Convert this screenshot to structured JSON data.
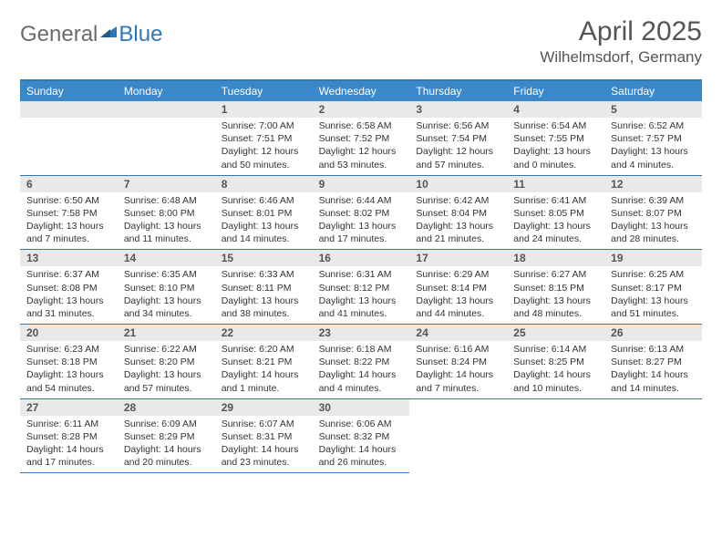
{
  "logo": {
    "part1": "General",
    "part2": "Blue"
  },
  "title": {
    "month": "April 2025",
    "location": "Wilhelmsdorf, Germany"
  },
  "colors": {
    "header_bar": "#3a87c9",
    "rule": "#2e77b8",
    "daynum_bg": "#e9e9e9",
    "text": "#333333",
    "title_text": "#555555"
  },
  "weekdays": [
    "Sunday",
    "Monday",
    "Tuesday",
    "Wednesday",
    "Thursday",
    "Friday",
    "Saturday"
  ],
  "weeks": [
    [
      {
        "n": "",
        "sr": "",
        "ss": "",
        "dl": ""
      },
      {
        "n": "",
        "sr": "",
        "ss": "",
        "dl": ""
      },
      {
        "n": "1",
        "sr": "Sunrise: 7:00 AM",
        "ss": "Sunset: 7:51 PM",
        "dl": "Daylight: 12 hours and 50 minutes."
      },
      {
        "n": "2",
        "sr": "Sunrise: 6:58 AM",
        "ss": "Sunset: 7:52 PM",
        "dl": "Daylight: 12 hours and 53 minutes."
      },
      {
        "n": "3",
        "sr": "Sunrise: 6:56 AM",
        "ss": "Sunset: 7:54 PM",
        "dl": "Daylight: 12 hours and 57 minutes."
      },
      {
        "n": "4",
        "sr": "Sunrise: 6:54 AM",
        "ss": "Sunset: 7:55 PM",
        "dl": "Daylight: 13 hours and 0 minutes."
      },
      {
        "n": "5",
        "sr": "Sunrise: 6:52 AM",
        "ss": "Sunset: 7:57 PM",
        "dl": "Daylight: 13 hours and 4 minutes."
      }
    ],
    [
      {
        "n": "6",
        "sr": "Sunrise: 6:50 AM",
        "ss": "Sunset: 7:58 PM",
        "dl": "Daylight: 13 hours and 7 minutes."
      },
      {
        "n": "7",
        "sr": "Sunrise: 6:48 AM",
        "ss": "Sunset: 8:00 PM",
        "dl": "Daylight: 13 hours and 11 minutes."
      },
      {
        "n": "8",
        "sr": "Sunrise: 6:46 AM",
        "ss": "Sunset: 8:01 PM",
        "dl": "Daylight: 13 hours and 14 minutes."
      },
      {
        "n": "9",
        "sr": "Sunrise: 6:44 AM",
        "ss": "Sunset: 8:02 PM",
        "dl": "Daylight: 13 hours and 17 minutes."
      },
      {
        "n": "10",
        "sr": "Sunrise: 6:42 AM",
        "ss": "Sunset: 8:04 PM",
        "dl": "Daylight: 13 hours and 21 minutes."
      },
      {
        "n": "11",
        "sr": "Sunrise: 6:41 AM",
        "ss": "Sunset: 8:05 PM",
        "dl": "Daylight: 13 hours and 24 minutes."
      },
      {
        "n": "12",
        "sr": "Sunrise: 6:39 AM",
        "ss": "Sunset: 8:07 PM",
        "dl": "Daylight: 13 hours and 28 minutes."
      }
    ],
    [
      {
        "n": "13",
        "sr": "Sunrise: 6:37 AM",
        "ss": "Sunset: 8:08 PM",
        "dl": "Daylight: 13 hours and 31 minutes."
      },
      {
        "n": "14",
        "sr": "Sunrise: 6:35 AM",
        "ss": "Sunset: 8:10 PM",
        "dl": "Daylight: 13 hours and 34 minutes."
      },
      {
        "n": "15",
        "sr": "Sunrise: 6:33 AM",
        "ss": "Sunset: 8:11 PM",
        "dl": "Daylight: 13 hours and 38 minutes."
      },
      {
        "n": "16",
        "sr": "Sunrise: 6:31 AM",
        "ss": "Sunset: 8:12 PM",
        "dl": "Daylight: 13 hours and 41 minutes."
      },
      {
        "n": "17",
        "sr": "Sunrise: 6:29 AM",
        "ss": "Sunset: 8:14 PM",
        "dl": "Daylight: 13 hours and 44 minutes."
      },
      {
        "n": "18",
        "sr": "Sunrise: 6:27 AM",
        "ss": "Sunset: 8:15 PM",
        "dl": "Daylight: 13 hours and 48 minutes."
      },
      {
        "n": "19",
        "sr": "Sunrise: 6:25 AM",
        "ss": "Sunset: 8:17 PM",
        "dl": "Daylight: 13 hours and 51 minutes."
      }
    ],
    [
      {
        "n": "20",
        "sr": "Sunrise: 6:23 AM",
        "ss": "Sunset: 8:18 PM",
        "dl": "Daylight: 13 hours and 54 minutes."
      },
      {
        "n": "21",
        "sr": "Sunrise: 6:22 AM",
        "ss": "Sunset: 8:20 PM",
        "dl": "Daylight: 13 hours and 57 minutes."
      },
      {
        "n": "22",
        "sr": "Sunrise: 6:20 AM",
        "ss": "Sunset: 8:21 PM",
        "dl": "Daylight: 14 hours and 1 minute."
      },
      {
        "n": "23",
        "sr": "Sunrise: 6:18 AM",
        "ss": "Sunset: 8:22 PM",
        "dl": "Daylight: 14 hours and 4 minutes."
      },
      {
        "n": "24",
        "sr": "Sunrise: 6:16 AM",
        "ss": "Sunset: 8:24 PM",
        "dl": "Daylight: 14 hours and 7 minutes."
      },
      {
        "n": "25",
        "sr": "Sunrise: 6:14 AM",
        "ss": "Sunset: 8:25 PM",
        "dl": "Daylight: 14 hours and 10 minutes."
      },
      {
        "n": "26",
        "sr": "Sunrise: 6:13 AM",
        "ss": "Sunset: 8:27 PM",
        "dl": "Daylight: 14 hours and 14 minutes."
      }
    ],
    [
      {
        "n": "27",
        "sr": "Sunrise: 6:11 AM",
        "ss": "Sunset: 8:28 PM",
        "dl": "Daylight: 14 hours and 17 minutes."
      },
      {
        "n": "28",
        "sr": "Sunrise: 6:09 AM",
        "ss": "Sunset: 8:29 PM",
        "dl": "Daylight: 14 hours and 20 minutes."
      },
      {
        "n": "29",
        "sr": "Sunrise: 6:07 AM",
        "ss": "Sunset: 8:31 PM",
        "dl": "Daylight: 14 hours and 23 minutes."
      },
      {
        "n": "30",
        "sr": "Sunrise: 6:06 AM",
        "ss": "Sunset: 8:32 PM",
        "dl": "Daylight: 14 hours and 26 minutes."
      },
      {
        "n": "",
        "sr": "",
        "ss": "",
        "dl": ""
      },
      {
        "n": "",
        "sr": "",
        "ss": "",
        "dl": ""
      },
      {
        "n": "",
        "sr": "",
        "ss": "",
        "dl": ""
      }
    ]
  ]
}
